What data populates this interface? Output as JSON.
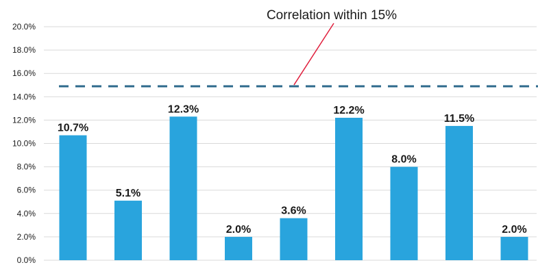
{
  "chart_data": {
    "type": "bar",
    "categories": [
      "",
      "",
      "",
      "",
      "",
      "",
      "",
      "",
      ""
    ],
    "values": [
      10.7,
      5.1,
      12.3,
      2.0,
      3.6,
      12.2,
      8.0,
      11.5,
      2.0
    ],
    "data_labels": [
      "10.7%",
      "5.1%",
      "12.3%",
      "2.0%",
      "3.6%",
      "12.2%",
      "8.0%",
      "11.5%",
      "2.0%"
    ],
    "ylim": [
      0,
      20
    ],
    "yticks": [
      0,
      2,
      4,
      6,
      8,
      10,
      12,
      14,
      16,
      18,
      20
    ],
    "ytick_labels": [
      "0.0%",
      "2.0%",
      "4.0%",
      "6.0%",
      "8.0%",
      "10.0%",
      "12.0%",
      "14.0%",
      "16.0%",
      "18.0%",
      "20.0%"
    ],
    "grid": true,
    "reference_line": {
      "value": 14.9,
      "style": "dashed",
      "annotation": "Correlation within 15%"
    },
    "colors": {
      "bar": "#29a4dd",
      "reference_line": "#2e6a8c",
      "annotation_pointer": "#e01e3c",
      "grid": "#d9d9d9",
      "text": "#1a1a1a"
    }
  }
}
